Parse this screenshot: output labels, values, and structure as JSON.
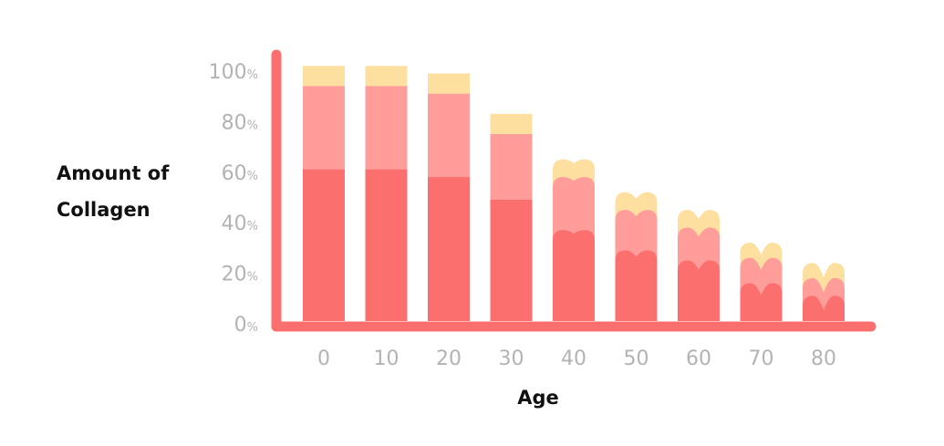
{
  "chart_data": {
    "type": "bar",
    "stacked": true,
    "xlabel": "Age",
    "ylabel": "Amount of Collagen",
    "categories": [
      "0",
      "10",
      "20",
      "30",
      "40",
      "50",
      "60",
      "70",
      "80"
    ],
    "yticks": [
      "0",
      "20",
      "40",
      "60",
      "80",
      "100"
    ],
    "ytick_suffix": "%",
    "ylim": [
      0,
      100
    ],
    "grid": false,
    "legend": "none",
    "series": [
      {
        "values": [
          60,
          60,
          57,
          48,
          36,
          28,
          24,
          15,
          10
        ],
        "color": "#fc6f6f"
      },
      {
        "values": [
          33,
          33,
          33,
          26,
          21,
          16,
          13,
          10,
          7
        ],
        "color": "#ff9d9b"
      },
      {
        "values": [
          8,
          8,
          8,
          8,
          7,
          7,
          7,
          6,
          6
        ],
        "color": "#fde0a0"
      }
    ]
  }
}
